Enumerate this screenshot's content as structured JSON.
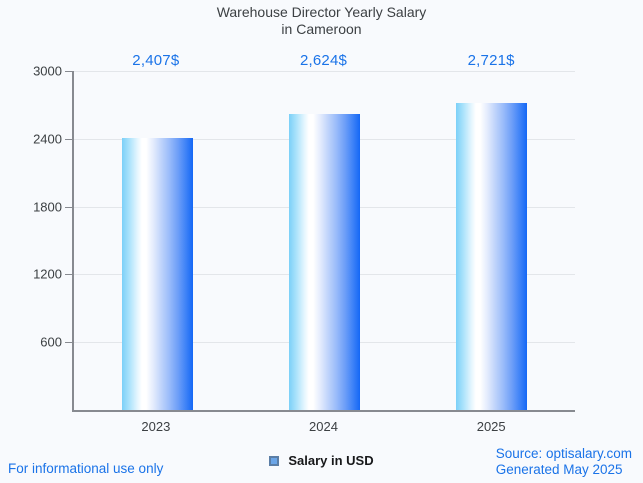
{
  "title": {
    "line1": "Warehouse Director Yearly Salary",
    "line2": "in Cameroon"
  },
  "chart_data": {
    "type": "bar",
    "title": "Warehouse Director Yearly Salary in Cameroon",
    "categories": [
      "2023",
      "2024",
      "2025"
    ],
    "values": [
      2407,
      2624,
      2721
    ],
    "value_labels": [
      "2,407$",
      "2,624$",
      "2,721$"
    ],
    "series_name": "Salary in USD",
    "xlabel": "",
    "ylabel": "",
    "ylim": [
      0,
      3000
    ],
    "y_ticks": [
      3000,
      2400,
      1800,
      1200,
      600
    ],
    "grid": true,
    "legend_position": "bottom-center",
    "bar_gradient": {
      "left": "#7bd0f8",
      "middle": "#ffffff",
      "right": "#1467f5"
    },
    "value_label_color": "#1a73e8"
  },
  "legend": {
    "label": "Salary in USD",
    "marker_color": "#6ba5e7",
    "marker_border_color": "#5b7ea6"
  },
  "footer": {
    "disclaimer": "For informational use only",
    "source": "Source: optisalary.com",
    "generated": "Generated May 2025"
  },
  "colors": {
    "background": "#f8fafd",
    "accent_blue": "#1a73e8",
    "axis": "#878a90",
    "gridline": "#e3e6ea",
    "text": "#3c4043"
  }
}
